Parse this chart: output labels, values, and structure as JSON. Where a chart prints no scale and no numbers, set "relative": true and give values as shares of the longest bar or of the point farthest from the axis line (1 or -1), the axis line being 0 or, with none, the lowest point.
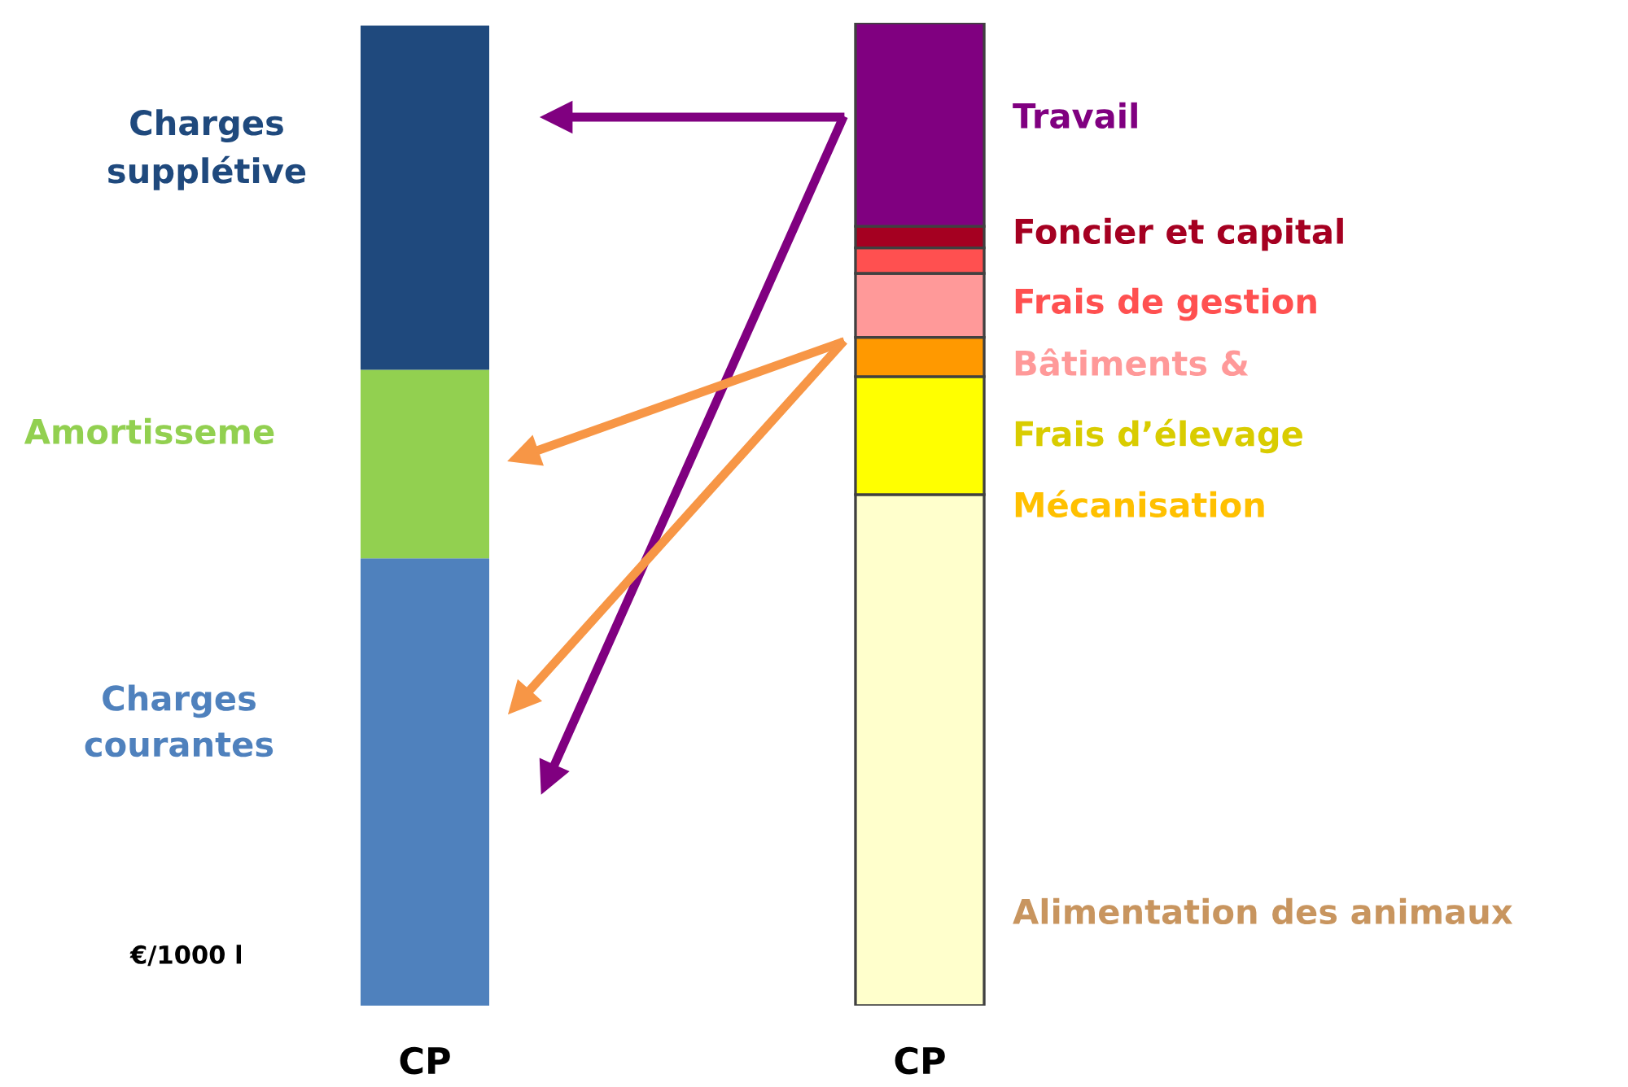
{
  "chart_data": {
    "type": "bar",
    "stacked": true,
    "relative": true,
    "categories": [
      "CP",
      "CP"
    ],
    "series": [
      {
        "name": "Charges courantes",
        "color": "#4f81bd",
        "values": [
          0.455,
          null
        ]
      },
      {
        "name": "Amortisseme",
        "color": "#92d050",
        "values": [
          0.192,
          null
        ]
      },
      {
        "name": "Charges supplétive",
        "color": "#1f497d",
        "values": [
          0.35,
          null
        ]
      },
      {
        "name": "Alimentation des animaux",
        "color": "#ffffcc",
        "values": [
          null,
          0.52
        ]
      },
      {
        "name": "Frais d’élevage",
        "color": "#ffff00",
        "values": [
          null,
          0.12
        ]
      },
      {
        "name": "Mécanisation",
        "color": "#ff9900",
        "values": [
          null,
          0.04
        ]
      },
      {
        "name": "Bâtiments &",
        "color": "#ff9999",
        "values": [
          null,
          0.065
        ]
      },
      {
        "name": "Frais de gestion",
        "color": "#ff5050",
        "values": [
          null,
          0.026
        ]
      },
      {
        "name": "Foncier et capital",
        "color": "#a50021",
        "values": [
          null,
          0.022
        ]
      },
      {
        "name": "Travail",
        "color": "#800080",
        "values": [
          null,
          0.207
        ]
      }
    ],
    "annotations": [
      "€/1000 l"
    ],
    "grid": false,
    "legend": false
  }
}
